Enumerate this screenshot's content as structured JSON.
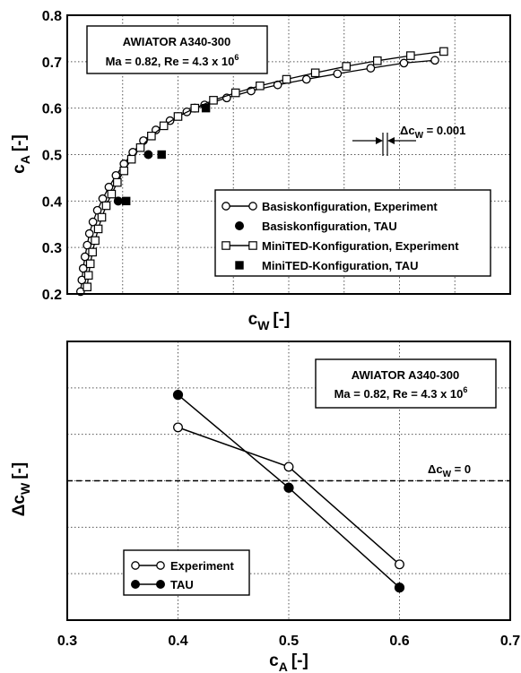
{
  "chart_data": [
    {
      "type": "line",
      "xlabel": "c",
      "xlabel_sub": "W",
      "xlabel_unit": "[-]",
      "ylabel": "c",
      "ylabel_sub": "A",
      "ylabel_unit": "[-]",
      "ylim": [
        0.2,
        0.8
      ],
      "xlim": [
        0,
        1
      ],
      "yticks": [
        "0.2",
        "0.3",
        "0.4",
        "0.5",
        "0.6",
        "0.7",
        "0.8"
      ],
      "x_ticklabels": false,
      "grid": true,
      "infobox": {
        "line1": "AWIATOR A340-300",
        "line2": "Ma = 0.82, Re = 4.3 x 10",
        "line2_sup": "6"
      },
      "annotation": {
        "prefix": "Δc",
        "sub": "W",
        "suffix": " = 0.001"
      },
      "legend_position": "bottom-right",
      "series": [
        {
          "name": "Basiskonfiguration, Experiment",
          "marker": "open-circle",
          "line": true,
          "points": [
            [
              0.03,
              0.205
            ],
            [
              0.033,
              0.23
            ],
            [
              0.036,
              0.255
            ],
            [
              0.04,
              0.28
            ],
            [
              0.045,
              0.305
            ],
            [
              0.05,
              0.33
            ],
            [
              0.058,
              0.355
            ],
            [
              0.068,
              0.38
            ],
            [
              0.08,
              0.405
            ],
            [
              0.094,
              0.43
            ],
            [
              0.11,
              0.455
            ],
            [
              0.128,
              0.48
            ],
            [
              0.148,
              0.505
            ],
            [
              0.172,
              0.53
            ],
            [
              0.2,
              0.553
            ],
            [
              0.232,
              0.573
            ],
            [
              0.27,
              0.592
            ],
            [
              0.31,
              0.607
            ],
            [
              0.36,
              0.622
            ],
            [
              0.415,
              0.637
            ],
            [
              0.475,
              0.65
            ],
            [
              0.54,
              0.662
            ],
            [
              0.61,
              0.674
            ],
            [
              0.685,
              0.686
            ],
            [
              0.76,
              0.697
            ],
            [
              0.83,
              0.703
            ]
          ]
        },
        {
          "name": "Basiskonfiguration, TAU",
          "marker": "filled-circle",
          "line": false,
          "points": [
            [
              0.115,
              0.4
            ],
            [
              0.183,
              0.5
            ],
            [
              0.288,
              0.6
            ]
          ]
        },
        {
          "name": "MiniTED-Konfiguration, Experiment",
          "marker": "open-square",
          "line": true,
          "points": [
            [
              0.045,
              0.215
            ],
            [
              0.048,
              0.24
            ],
            [
              0.052,
              0.265
            ],
            [
              0.057,
              0.29
            ],
            [
              0.063,
              0.315
            ],
            [
              0.07,
              0.34
            ],
            [
              0.078,
              0.365
            ],
            [
              0.088,
              0.39
            ],
            [
              0.1,
              0.415
            ],
            [
              0.113,
              0.44
            ],
            [
              0.128,
              0.465
            ],
            [
              0.145,
              0.49
            ],
            [
              0.165,
              0.515
            ],
            [
              0.19,
              0.54
            ],
            [
              0.218,
              0.562
            ],
            [
              0.25,
              0.582
            ],
            [
              0.288,
              0.6
            ],
            [
              0.33,
              0.617
            ],
            [
              0.38,
              0.633
            ],
            [
              0.435,
              0.648
            ],
            [
              0.495,
              0.662
            ],
            [
              0.56,
              0.676
            ],
            [
              0.63,
              0.69
            ],
            [
              0.7,
              0.702
            ],
            [
              0.775,
              0.713
            ],
            [
              0.85,
              0.722
            ]
          ]
        },
        {
          "name": "MiniTED-Konfiguration, TAU",
          "marker": "filled-square",
          "line": false,
          "points": [
            [
              0.133,
              0.4
            ],
            [
              0.213,
              0.5
            ],
            [
              0.313,
              0.6
            ]
          ]
        }
      ]
    },
    {
      "type": "line",
      "xlabel": "c",
      "xlabel_sub": "A",
      "xlabel_unit": "[-]",
      "ylabel": "Δc",
      "ylabel_sub": "W",
      "ylabel_unit": "[-]",
      "xlim": [
        0.3,
        0.7
      ],
      "xticks": [
        "0.3",
        "0.4",
        "0.5",
        "0.6",
        "0.7"
      ],
      "ylim": [
        0,
        6
      ],
      "y_ticklabels": false,
      "grid": true,
      "zero_line": {
        "value": 3.0,
        "label_prefix": "Δc",
        "label_sub": "W",
        "label_suffix": " = 0"
      },
      "infobox": {
        "line1": "AWIATOR A340-300",
        "line2": "Ma = 0.82, Re = 4.3 x 10",
        "line2_sup": "6"
      },
      "legend_position": "bottom-left",
      "series": [
        {
          "name": "Experiment",
          "marker": "open-circle",
          "x": [
            0.4,
            0.5,
            0.6
          ],
          "y": [
            4.15,
            3.3,
            1.2
          ]
        },
        {
          "name": "TAU",
          "marker": "filled-circle",
          "x": [
            0.4,
            0.5,
            0.6
          ],
          "y": [
            4.85,
            2.85,
            0.7
          ]
        }
      ]
    }
  ]
}
